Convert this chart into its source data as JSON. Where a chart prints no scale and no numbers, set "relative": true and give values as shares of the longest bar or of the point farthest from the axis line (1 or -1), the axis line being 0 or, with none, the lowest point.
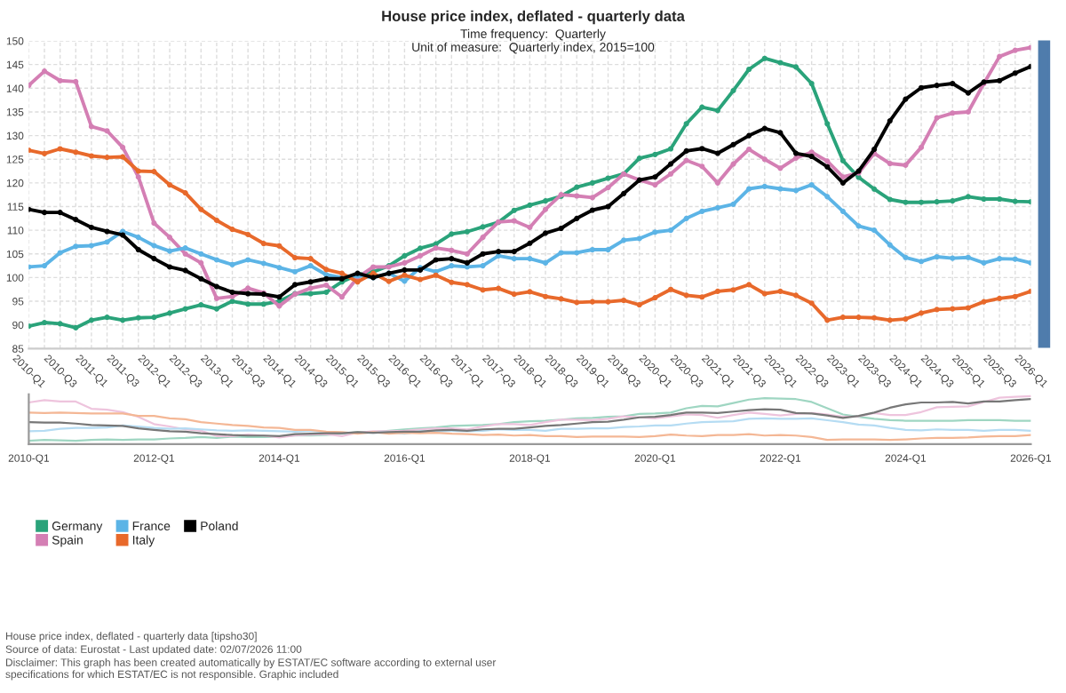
{
  "chart_data": [
    {
      "type": "line",
      "title": "House price index, deflated - quarterly data",
      "subtitle": "Time frequency:  Quarterly\nUnit of measure:  Quarterly index, 2015=100",
      "categories": [
        "2010-Q1",
        null,
        "2010-Q3",
        null,
        "2011-Q1",
        null,
        "2011-Q3",
        null,
        "2012-Q1",
        null,
        "2012-Q3",
        null,
        "2013-Q1",
        null,
        "2013-Q3",
        null,
        "2014-Q1",
        null,
        "2014-Q3",
        null,
        "2015-Q1",
        null,
        "2015-Q3",
        null,
        "2016-Q1",
        null,
        "2016-Q3",
        null,
        "2017-Q1",
        null,
        "2017-Q3",
        null,
        "2018-Q1",
        null,
        "2018-Q3",
        null,
        "2019-Q1",
        null,
        "2019-Q3",
        null,
        "2020-Q1",
        null,
        "2020-Q3",
        null,
        "2021-Q1",
        null,
        "2021-Q3",
        null,
        "2022-Q1",
        null,
        "2022-Q3",
        null,
        "2023-Q1",
        null,
        "2023-Q3",
        null,
        "2024-Q1",
        null,
        "2024-Q3",
        null,
        "2025-Q1",
        null,
        "2025-Q3",
        null,
        "2026-Q1"
      ],
      "series": [
        {
          "name": "Germany",
          "color": "#2aa37a",
          "values": [
            89.75,
            90.5,
            90.25,
            89.4,
            91,
            91.6,
            91,
            91.5,
            91.6,
            92.5,
            93.4,
            94.25,
            93.4,
            95,
            94.4,
            94.4,
            95,
            96.6,
            96.6,
            96.9,
            99.1,
            100.6,
            101.2,
            102.5,
            104.6,
            106.2,
            107.1,
            109.2,
            109.7,
            110.7,
            111.7,
            114.2,
            115.3,
            116.2,
            117.2,
            119.1,
            120,
            121,
            121.9,
            125.2,
            126,
            127.2,
            132.5,
            136,
            135.3,
            139.5,
            144,
            146.3,
            145.4,
            144.5,
            141,
            132.5,
            124.7,
            121.2,
            118.7,
            116.5,
            115.9,
            115.9,
            116,
            116.2,
            117.1,
            116.6,
            116.6,
            116.1,
            116
          ]
        },
        {
          "name": "Spain",
          "color": "#d47fb4",
          "values": [
            140.6,
            143.6,
            141.6,
            141.4,
            131.9,
            131,
            127.5,
            121.25,
            111.5,
            108.5,
            105,
            103.1,
            95.6,
            96,
            97.75,
            96.75,
            94,
            96.5,
            97.75,
            98.4,
            95.9,
            100,
            102.25,
            102.25,
            103.1,
            104.6,
            106.25,
            105.75,
            105,
            108.5,
            111.75,
            112,
            110.6,
            114.4,
            117.5,
            117.25,
            116.9,
            119,
            121.9,
            120.6,
            119.6,
            121.9,
            124.75,
            123.5,
            120,
            124,
            127.1,
            125,
            123.1,
            125.25,
            126.5,
            124.6,
            121.25,
            122.1,
            126.25,
            124.1,
            123.75,
            127.5,
            133.75,
            134.75,
            135,
            141,
            146.7,
            148,
            148.6
          ]
        },
        {
          "name": "France",
          "color": "#5cb4e6",
          "values": [
            102.25,
            102.5,
            105.25,
            106.6,
            106.75,
            107.5,
            109.75,
            108.5,
            106.75,
            105.6,
            106.25,
            105,
            103.75,
            102.75,
            103.75,
            103,
            102.1,
            101.25,
            102.5,
            100.6,
            100,
            100.4,
            100,
            100.9,
            99.25,
            102.1,
            101.25,
            102.5,
            102.25,
            102.5,
            104.6,
            104,
            104,
            103.1,
            105.25,
            105.25,
            105.9,
            105.9,
            107.9,
            108.25,
            109.6,
            110,
            112.5,
            114,
            114.75,
            115.5,
            118.75,
            119.25,
            118.75,
            118.4,
            119.6,
            117.1,
            114,
            110.9,
            110,
            106.9,
            104.25,
            103.4,
            104.4,
            104.1,
            104.25,
            103.1,
            104,
            103.9,
            103.1
          ]
        },
        {
          "name": "Italy",
          "color": "#e8692b",
          "values": [
            126.9,
            126.2,
            127.2,
            126.5,
            125.7,
            125.4,
            125.5,
            122.5,
            122.4,
            119.6,
            117.9,
            114.4,
            112.1,
            110.2,
            109.1,
            107.2,
            106.7,
            104.2,
            104,
            101.7,
            100.9,
            99.1,
            100.9,
            99.2,
            100.5,
            99.6,
            100.5,
            99,
            98.5,
            97.4,
            97.7,
            96.5,
            97,
            96,
            95.5,
            94.75,
            94.9,
            94.9,
            95.2,
            94.25,
            95.75,
            97.5,
            96.25,
            95.9,
            97.1,
            97.4,
            98.5,
            96.6,
            97.1,
            96.25,
            94.6,
            91,
            91.6,
            91.6,
            91.5,
            91,
            91.25,
            92.5,
            93.25,
            93.4,
            93.6,
            94.9,
            95.6,
            96,
            97.1
          ]
        },
        {
          "name": "Poland",
          "color": "#000000",
          "values": [
            114.4,
            113.75,
            113.75,
            112.25,
            110.6,
            109.75,
            109,
            105.9,
            104,
            102.25,
            101.5,
            99.75,
            98.1,
            96.9,
            96.6,
            96.5,
            95.9,
            98.5,
            99.1,
            99.75,
            99.75,
            100.9,
            100,
            100.9,
            101.6,
            101.6,
            103.75,
            104,
            103.1,
            105,
            105.5,
            105.5,
            107.25,
            109.4,
            110.4,
            112.5,
            114.25,
            115,
            117.75,
            120.6,
            121.25,
            124,
            126.75,
            127.25,
            126.25,
            128.1,
            130,
            131.5,
            130.6,
            126.25,
            125.6,
            123.4,
            120,
            122.5,
            127.1,
            133.1,
            137.7,
            140.1,
            140.6,
            141,
            139,
            141.3,
            141.6,
            143.2,
            144.6
          ]
        }
      ],
      "ylim": [
        85,
        150
      ],
      "yticks": [
        85,
        90,
        95,
        100,
        105,
        110,
        115,
        120,
        125,
        130,
        135,
        140,
        145,
        150
      ],
      "grid": true,
      "legend": "bottom left",
      "marker": "circle",
      "line_style": "solid",
      "annotations": [
        "House price index, deflated - quarterly data [tipsho30]",
        "Source of data: Eurostat - Last updated date: 02/07/2026 11:00",
        "Disclaimer: This graph has been created automatically by ESTAT/EC software according to external user\nspecifications for which ESTAT/EC is not responsible. Graphic included"
      ]
    },
    {
      "type": "line",
      "tick_labels": "x",
      "relative": true,
      "line_style": "solid",
      "categories": [
        "2010-Q1",
        null,
        null,
        null,
        null,
        null,
        null,
        null,
        "2012-Q1",
        null,
        null,
        null,
        null,
        null,
        null,
        null,
        "2014-Q1",
        null,
        null,
        null,
        null,
        null,
        null,
        null,
        "2016-Q1",
        null,
        null,
        null,
        null,
        null,
        null,
        null,
        "2018-Q1",
        null,
        null,
        null,
        null,
        null,
        null,
        null,
        "2020-Q1",
        null,
        null,
        null,
        null,
        null,
        null,
        null,
        "2022-Q1",
        null,
        null,
        null,
        null,
        null,
        null,
        null,
        "2024-Q1",
        null,
        null,
        null,
        null,
        null,
        null,
        null,
        "2026-Q1"
      ],
      "series": [
        {
          "color": "#9fd6c2",
          "values": [
            0.07,
            0.09,
            0.08,
            0.07,
            0.09,
            0.1,
            0.09,
            0.1,
            0.1,
            0.12,
            0.13,
            0.15,
            0.13,
            0.16,
            0.15,
            0.15,
            0.16,
            0.18,
            0.18,
            0.19,
            0.22,
            0.25,
            0.25,
            0.28,
            0.31,
            0.33,
            0.35,
            0.38,
            0.39,
            0.4,
            0.42,
            0.46,
            0.48,
            0.49,
            0.51,
            0.54,
            0.55,
            0.57,
            0.58,
            0.63,
            0.64,
            0.66,
            0.75,
            0.8,
            0.79,
            0.86,
            0.93,
            0.96,
            0.95,
            0.94,
            0.88,
            0.75,
            0.62,
            0.57,
            0.53,
            0.5,
            0.49,
            0.49,
            0.49,
            0.49,
            0.5,
            0.5,
            0.5,
            0.49,
            0.49
          ]
        },
        {
          "color": "#eec4dd",
          "values": [
            0.87,
            0.92,
            0.89,
            0.89,
            0.74,
            0.72,
            0.67,
            0.57,
            0.42,
            0.37,
            0.31,
            0.28,
            0.17,
            0.17,
            0.2,
            0.18,
            0.14,
            0.18,
            0.2,
            0.21,
            0.17,
            0.24,
            0.27,
            0.27,
            0.28,
            0.31,
            0.33,
            0.33,
            0.31,
            0.37,
            0.42,
            0.42,
            0.4,
            0.46,
            0.51,
            0.51,
            0.5,
            0.53,
            0.58,
            0.56,
            0.54,
            0.58,
            0.62,
            0.61,
            0.55,
            0.61,
            0.66,
            0.63,
            0.6,
            0.63,
            0.65,
            0.62,
            0.57,
            0.58,
            0.65,
            0.61,
            0.61,
            0.67,
            0.77,
            0.78,
            0.79,
            0.88,
            0.97,
            0.99,
            1
          ]
        },
        {
          "color": "#b5dcf3",
          "values": [
            0.27,
            0.28,
            0.32,
            0.34,
            0.34,
            0.35,
            0.39,
            0.37,
            0.34,
            0.32,
            0.33,
            0.31,
            0.29,
            0.28,
            0.29,
            0.28,
            0.27,
            0.26,
            0.28,
            0.25,
            0.24,
            0.24,
            0.24,
            0.25,
            0.22,
            0.27,
            0.26,
            0.28,
            0.27,
            0.28,
            0.31,
            0.3,
            0.3,
            0.28,
            0.32,
            0.32,
            0.33,
            0.33,
            0.36,
            0.37,
            0.39,
            0.39,
            0.43,
            0.46,
            0.47,
            0.48,
            0.53,
            0.54,
            0.53,
            0.53,
            0.54,
            0.5,
            0.46,
            0.41,
            0.39,
            0.34,
            0.3,
            0.29,
            0.31,
            0.3,
            0.3,
            0.28,
            0.3,
            0.3,
            0.28
          ]
        },
        {
          "color": "#f4b795",
          "values": [
            0.66,
            0.65,
            0.66,
            0.65,
            0.64,
            0.64,
            0.64,
            0.59,
            0.59,
            0.54,
            0.52,
            0.46,
            0.43,
            0.4,
            0.38,
            0.35,
            0.34,
            0.3,
            0.3,
            0.26,
            0.25,
            0.22,
            0.25,
            0.22,
            0.24,
            0.23,
            0.24,
            0.22,
            0.21,
            0.19,
            0.2,
            0.18,
            0.19,
            0.17,
            0.17,
            0.15,
            0.16,
            0.16,
            0.16,
            0.15,
            0.17,
            0.2,
            0.18,
            0.17,
            0.19,
            0.19,
            0.21,
            0.18,
            0.19,
            0.18,
            0.15,
            0.09,
            0.1,
            0.1,
            0.1,
            0.09,
            0.1,
            0.12,
            0.13,
            0.13,
            0.14,
            0.16,
            0.17,
            0.17,
            0.19
          ]
        },
        {
          "color": "#777777",
          "values": [
            0.46,
            0.45,
            0.45,
            0.43,
            0.4,
            0.39,
            0.38,
            0.33,
            0.3,
            0.27,
            0.26,
            0.23,
            0.21,
            0.19,
            0.18,
            0.18,
            0.17,
            0.21,
            0.22,
            0.23,
            0.23,
            0.25,
            0.24,
            0.25,
            0.26,
            0.26,
            0.29,
            0.3,
            0.28,
            0.31,
            0.32,
            0.32,
            0.35,
            0.38,
            0.4,
            0.43,
            0.46,
            0.47,
            0.51,
            0.56,
            0.57,
            0.61,
            0.66,
            0.66,
            0.65,
            0.68,
            0.71,
            0.73,
            0.72,
            0.65,
            0.64,
            0.6,
            0.55,
            0.59,
            0.66,
            0.76,
            0.83,
            0.87,
            0.87,
            0.88,
            0.85,
            0.89,
            0.89,
            0.92,
            0.94
          ]
        }
      ]
    }
  ]
}
